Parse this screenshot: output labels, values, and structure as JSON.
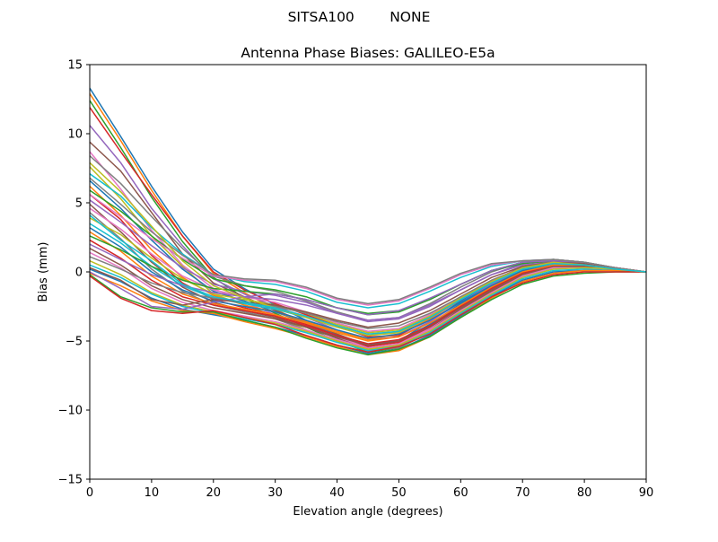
{
  "figure": {
    "suptitle": "SITSA100        NONE"
  },
  "chart_data": {
    "type": "line",
    "title": "Antenna Phase Biases: GALILEO-E5a",
    "xlabel": "Elevation angle (degrees)",
    "ylabel": "Bias (mm)",
    "xlim": [
      0,
      90
    ],
    "ylim": [
      -15,
      15
    ],
    "xticks": [
      0,
      10,
      20,
      30,
      40,
      50,
      60,
      70,
      80,
      90
    ],
    "yticks": [
      -15,
      -10,
      -5,
      0,
      5,
      10,
      15
    ],
    "xtick_labels": [
      "0",
      "10",
      "20",
      "30",
      "40",
      "50",
      "60",
      "70",
      "80",
      "90"
    ],
    "ytick_labels": [
      "−15",
      "−10",
      "−5",
      "0",
      "5",
      "10",
      "15"
    ],
    "grid": false,
    "legend": "none",
    "colors": [
      "#1f77b4",
      "#ff7f0e",
      "#2ca02c",
      "#d62728",
      "#9467bd",
      "#8c564b",
      "#e377c2",
      "#7f7f7f",
      "#bcbd22",
      "#17becf"
    ],
    "x": [
      0,
      5,
      10,
      15,
      20,
      25,
      30,
      35,
      40,
      45,
      50,
      55,
      60,
      65,
      70,
      75,
      80,
      85,
      90
    ],
    "series": [
      {
        "values": [
          13.3,
          9.8,
          6.2,
          2.9,
          0.2,
          -1.2,
          -2.4,
          -3.5,
          -4.5,
          -5.4,
          -5.0,
          -3.6,
          -2.1,
          -0.8,
          0.3,
          0.8,
          0.6,
          0.3,
          0.0
        ]
      },
      {
        "values": [
          12.9,
          9.5,
          5.9,
          2.6,
          -0.1,
          -1.5,
          -2.7,
          -3.8,
          -4.8,
          -5.6,
          -5.3,
          -4.0,
          -2.5,
          -1.2,
          0.0,
          0.6,
          0.5,
          0.2,
          0.0
        ]
      },
      {
        "values": [
          12.4,
          9.0,
          5.4,
          2.2,
          -0.4,
          -1.9,
          -3.0,
          -4.0,
          -5.0,
          -5.8,
          -5.5,
          -4.3,
          -2.8,
          -1.5,
          -0.3,
          0.3,
          0.3,
          0.2,
          0.0
        ]
      },
      {
        "values": [
          11.9,
          8.7,
          5.6,
          2.6,
          0.0,
          -1.3,
          -2.3,
          -3.1,
          -3.9,
          -4.7,
          -4.6,
          -3.4,
          -2.0,
          -0.7,
          0.4,
          0.8,
          0.6,
          0.3,
          0.0
        ]
      },
      {
        "values": [
          10.6,
          7.9,
          4.6,
          1.9,
          -0.5,
          -1.6,
          -2.5,
          -3.3,
          -4.2,
          -4.9,
          -4.7,
          -3.6,
          -2.2,
          -0.9,
          0.2,
          0.7,
          0.5,
          0.2,
          0.0
        ]
      },
      {
        "values": [
          9.4,
          7.3,
          4.3,
          1.3,
          -0.8,
          -1.8,
          -2.8,
          -3.6,
          -4.5,
          -5.3,
          -5.1,
          -3.9,
          -2.4,
          -1.1,
          0.1,
          0.6,
          0.5,
          0.2,
          0.0
        ]
      },
      {
        "values": [
          8.7,
          6.0,
          3.0,
          0.5,
          -1.2,
          -2.2,
          -3.1,
          -3.9,
          -4.7,
          -5.5,
          -5.2,
          -4.1,
          -2.6,
          -1.3,
          -0.1,
          0.5,
          0.4,
          0.2,
          0.0
        ]
      },
      {
        "values": [
          8.4,
          6.4,
          4.0,
          1.7,
          -0.3,
          -1.0,
          -1.4,
          -2.1,
          -2.9,
          -3.5,
          -3.3,
          -2.3,
          -1.1,
          0.0,
          0.7,
          0.9,
          0.7,
          0.3,
          0.0
        ]
      },
      {
        "values": [
          7.6,
          5.3,
          2.6,
          0.4,
          -1.6,
          -2.4,
          -3.2,
          -4.2,
          -5.0,
          -5.7,
          -5.4,
          -4.3,
          -2.7,
          -1.4,
          -0.2,
          0.4,
          0.4,
          0.2,
          0.0
        ]
      },
      {
        "values": [
          7.1,
          5.5,
          3.2,
          1.3,
          -0.2,
          -0.7,
          -0.9,
          -1.4,
          -2.2,
          -2.6,
          -2.3,
          -1.4,
          -0.4,
          0.4,
          0.8,
          0.9,
          0.7,
          0.3,
          0.0
        ]
      },
      {
        "values": [
          6.6,
          4.6,
          2.3,
          0.2,
          -1.4,
          -2.1,
          -2.9,
          -3.7,
          -4.6,
          -5.2,
          -5.0,
          -3.8,
          -2.3,
          -1.0,
          0.1,
          0.6,
          0.5,
          0.2,
          0.0
        ]
      },
      {
        "values": [
          6.2,
          4.1,
          1.6,
          -0.4,
          -1.7,
          -2.4,
          -2.9,
          -3.6,
          -4.3,
          -4.9,
          -4.5,
          -3.4,
          -2.0,
          -0.8,
          0.2,
          0.6,
          0.5,
          0.2,
          0.0
        ]
      },
      {
        "values": [
          5.9,
          4.4,
          2.6,
          0.9,
          -0.5,
          -1.0,
          -1.3,
          -1.8,
          -2.6,
          -3.1,
          -2.9,
          -2.0,
          -0.9,
          0.1,
          0.7,
          0.9,
          0.7,
          0.3,
          0.0
        ]
      },
      {
        "values": [
          5.6,
          3.8,
          1.2,
          -0.8,
          -2.0,
          -2.6,
          -3.1,
          -3.8,
          -4.6,
          -5.4,
          -5.1,
          -4.0,
          -2.5,
          -1.2,
          0.0,
          0.5,
          0.4,
          0.2,
          0.0
        ]
      },
      {
        "values": [
          5.2,
          3.6,
          1.9,
          0.3,
          -0.9,
          -1.4,
          -1.7,
          -2.2,
          -3.0,
          -3.6,
          -3.4,
          -2.5,
          -1.3,
          -0.2,
          0.6,
          0.8,
          0.6,
          0.3,
          0.0
        ]
      },
      {
        "values": [
          4.9,
          2.9,
          0.7,
          -1.1,
          -2.2,
          -2.8,
          -3.3,
          -4.0,
          -4.8,
          -5.6,
          -5.3,
          -4.2,
          -2.7,
          -1.4,
          -0.2,
          0.4,
          0.4,
          0.2,
          0.0
        ]
      },
      {
        "values": [
          4.6,
          3.1,
          1.3,
          -0.3,
          -1.3,
          -1.8,
          -2.2,
          -2.9,
          -3.7,
          -4.3,
          -4.1,
          -3.1,
          -1.8,
          -0.6,
          0.3,
          0.7,
          0.6,
          0.3,
          0.0
        ]
      },
      {
        "values": [
          4.3,
          2.4,
          0.2,
          -1.4,
          -2.4,
          -2.9,
          -3.4,
          -4.2,
          -5.0,
          -5.7,
          -5.5,
          -4.4,
          -2.9,
          -1.6,
          -0.3,
          0.3,
          0.3,
          0.2,
          0.0
        ]
      },
      {
        "values": [
          3.9,
          2.7,
          1.0,
          -0.5,
          -1.6,
          -2.0,
          -2.4,
          -3.0,
          -3.8,
          -4.4,
          -4.2,
          -3.2,
          -1.9,
          -0.7,
          0.2,
          0.6,
          0.5,
          0.3,
          0.0
        ]
      },
      {
        "values": [
          3.5,
          2.1,
          0.4,
          -1.0,
          -1.9,
          -2.3,
          -2.7,
          -3.3,
          -4.0,
          -4.6,
          -4.3,
          -3.3,
          -2.0,
          -0.8,
          0.2,
          0.6,
          0.5,
          0.2,
          0.0
        ]
      },
      {
        "values": [
          3.2,
          1.8,
          0.0,
          -1.3,
          -2.1,
          -2.5,
          -2.9,
          -3.5,
          -4.2,
          -4.8,
          -4.5,
          -3.5,
          -2.2,
          -1.0,
          0.1,
          0.5,
          0.5,
          0.2,
          0.0
        ]
      },
      {
        "values": [
          2.9,
          1.5,
          -0.3,
          -1.6,
          -2.3,
          -2.7,
          -3.1,
          -3.7,
          -4.4,
          -5.0,
          -4.7,
          -3.7,
          -2.4,
          -1.1,
          0.0,
          0.5,
          0.4,
          0.2,
          0.0
        ]
      },
      {
        "values": [
          2.6,
          1.6,
          0.4,
          -0.6,
          -1.2,
          -1.4,
          -1.6,
          -2.0,
          -2.6,
          -3.0,
          -2.8,
          -2.0,
          -0.9,
          0.1,
          0.6,
          0.8,
          0.6,
          0.3,
          0.0
        ]
      },
      {
        "values": [
          2.3,
          1.0,
          -0.6,
          -1.8,
          -2.4,
          -2.8,
          -3.2,
          -3.9,
          -4.6,
          -5.2,
          -4.9,
          -3.9,
          -2.5,
          -1.2,
          -0.1,
          0.4,
          0.4,
          0.2,
          0.0
        ]
      },
      {
        "values": [
          2.0,
          0.9,
          -0.2,
          -1.0,
          -1.5,
          -1.8,
          -2.0,
          -2.4,
          -3.0,
          -3.5,
          -3.3,
          -2.4,
          -1.3,
          -0.2,
          0.5,
          0.7,
          0.6,
          0.3,
          0.0
        ]
      },
      {
        "values": [
          1.7,
          0.5,
          -1.0,
          -2.0,
          -2.6,
          -3.0,
          -3.4,
          -4.0,
          -4.7,
          -5.3,
          -5.0,
          -4.0,
          -2.6,
          -1.3,
          -0.2,
          0.4,
          0.4,
          0.2,
          0.0
        ]
      },
      {
        "values": [
          1.4,
          0.3,
          -1.2,
          -2.2,
          -2.8,
          -3.2,
          -3.6,
          -4.2,
          -4.9,
          -5.5,
          -5.2,
          -4.2,
          -2.8,
          -1.5,
          -0.3,
          0.3,
          0.3,
          0.2,
          0.0
        ]
      },
      {
        "values": [
          1.1,
          0.2,
          -0.8,
          -1.5,
          -1.9,
          -2.2,
          -2.5,
          -3.0,
          -3.6,
          -4.1,
          -3.9,
          -3.0,
          -1.8,
          -0.6,
          0.3,
          0.6,
          0.5,
          0.3,
          0.0
        ]
      },
      {
        "values": [
          0.8,
          -0.2,
          -1.5,
          -2.4,
          -2.9,
          -3.3,
          -3.7,
          -4.3,
          -5.0,
          -5.6,
          -5.3,
          -4.3,
          -2.9,
          -1.6,
          -0.4,
          0.2,
          0.3,
          0.2,
          0.0
        ]
      },
      {
        "values": [
          0.5,
          -0.4,
          -1.6,
          -2.5,
          -3.0,
          -3.4,
          -3.8,
          -4.4,
          -5.1,
          -5.7,
          -5.4,
          -4.4,
          -3.0,
          -1.7,
          -0.5,
          0.1,
          0.2,
          0.1,
          0.0
        ]
      },
      {
        "values": [
          0.2,
          -0.7,
          -1.9,
          -2.7,
          -3.1,
          -3.5,
          -4.0,
          -4.6,
          -5.3,
          -5.9,
          -5.6,
          -4.6,
          -3.2,
          -1.8,
          -0.6,
          0.0,
          0.1,
          0.1,
          0.0
        ]
      },
      {
        "values": [
          -0.1,
          -1.0,
          -2.1,
          -2.8,
          -3.0,
          -3.6,
          -4.1,
          -4.7,
          -5.4,
          -6.0,
          -5.7,
          -4.7,
          -3.3,
          -1.9,
          -0.7,
          -0.1,
          0.1,
          0.1,
          0.0
        ]
      },
      {
        "values": [
          -0.2,
          -1.8,
          -2.6,
          -2.9,
          -2.9,
          -3.5,
          -4.0,
          -4.8,
          -5.5,
          -6.0,
          -5.6,
          -4.7,
          -3.3,
          -2.0,
          -0.9,
          -0.3,
          -0.1,
          0.0,
          0.0
        ]
      },
      {
        "values": [
          -0.3,
          -1.9,
          -2.8,
          -3.0,
          -2.8,
          -3.3,
          -3.8,
          -4.6,
          -5.3,
          -5.8,
          -5.4,
          -4.5,
          -3.1,
          -1.8,
          -0.8,
          -0.2,
          0.0,
          0.0,
          0.0
        ]
      },
      {
        "values": [
          0.0,
          -1.2,
          -2.5,
          -2.7,
          -2.2,
          -1.8,
          -1.6,
          -2.0,
          -2.6,
          -3.1,
          -2.8,
          -1.9,
          -0.9,
          0.1,
          0.7,
          0.8,
          0.6,
          0.3,
          0.0
        ]
      },
      {
        "values": [
          0.3,
          -0.6,
          -2.0,
          -2.4,
          -2.0,
          -2.2,
          -2.4,
          -2.9,
          -3.5,
          -4.0,
          -3.7,
          -2.8,
          -1.6,
          -0.4,
          0.4,
          0.7,
          0.6,
          0.3,
          0.0
        ]
      },
      {
        "values": [
          5.6,
          4.0,
          2.4,
          1.0,
          -0.3,
          -0.6,
          -0.7,
          -1.2,
          -2.0,
          -2.4,
          -2.1,
          -1.2,
          -0.2,
          0.5,
          0.8,
          0.9,
          0.7,
          0.3,
          0.0
        ]
      },
      {
        "values": [
          6.8,
          4.9,
          2.9,
          1.2,
          -0.2,
          -0.5,
          -0.6,
          -1.1,
          -1.9,
          -2.3,
          -2.0,
          -1.1,
          -0.1,
          0.6,
          0.8,
          0.9,
          0.7,
          0.3,
          0.0
        ]
      },
      {
        "values": [
          7.9,
          5.8,
          3.3,
          0.8,
          -1.0,
          -1.9,
          -2.6,
          -3.3,
          -4.0,
          -4.6,
          -4.4,
          -3.3,
          -1.9,
          -0.7,
          0.3,
          0.7,
          0.5,
          0.2,
          0.0
        ]
      },
      {
        "values": [
          4.1,
          2.3,
          0.8,
          -0.9,
          -1.8,
          -2.2,
          -2.6,
          -3.2,
          -3.9,
          -4.5,
          -4.3,
          -3.3,
          -2.0,
          -0.8,
          0.2,
          0.6,
          0.5,
          0.2,
          0.0
        ]
      }
    ]
  }
}
